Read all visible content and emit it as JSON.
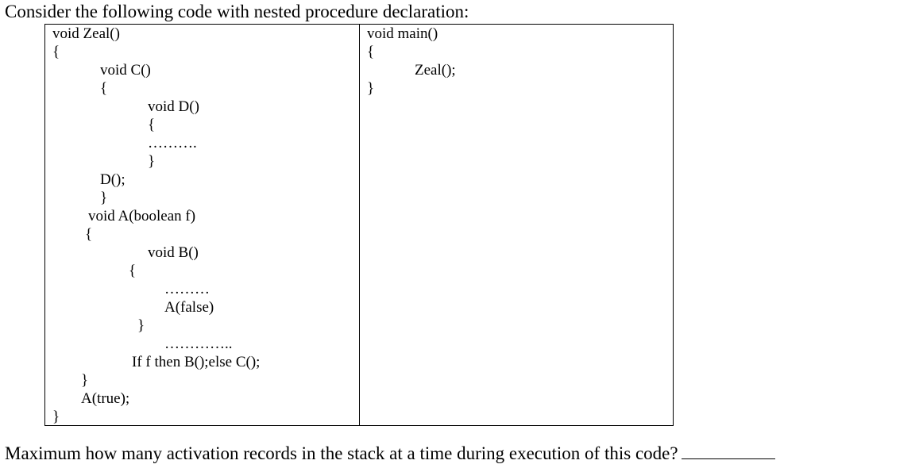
{
  "intro_text": "Consider the following code with nested procedure declaration:",
  "left_code": [
    "void Zeal()",
    "{",
    "void C()",
    "{",
    "void D()",
    "{",
    "……….",
    "}",
    "D();",
    "}",
    "void A(boolean f)",
    "{",
    "void B()",
    "{",
    "………",
    "A(false)",
    "}",
    "…………..",
    "If f then B();else C();",
    "}",
    "A(true);",
    "}"
  ],
  "right_code": [
    "void main()",
    "{",
    "Zeal();",
    "}"
  ],
  "question_text": "Maximum how many activation records in the stack at a time during execution of this code?"
}
